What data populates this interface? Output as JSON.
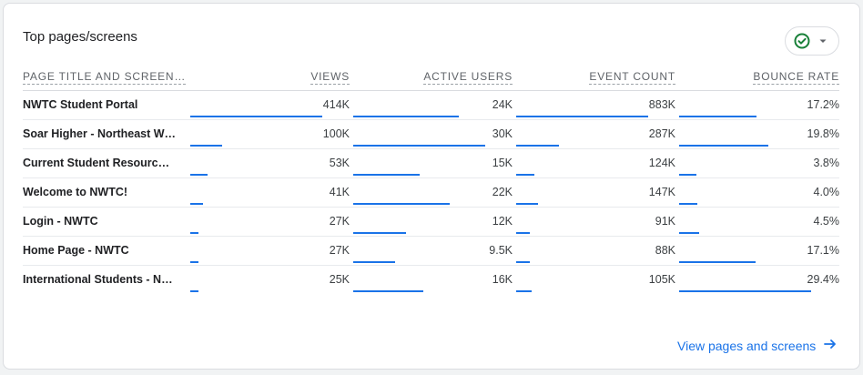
{
  "card": {
    "title": "Top pages/screens",
    "compare_icon": "check-circle-icon",
    "dropdown_icon": "caret-down-icon",
    "footer_link": "View pages and screens",
    "footer_icon": "arrow-right-icon"
  },
  "columns": [
    "PAGE TITLE AND SCREEN…",
    "VIEWS",
    "ACTIVE USERS",
    "EVENT COUNT",
    "BOUNCE RATE"
  ],
  "rows": [
    {
      "name": "NWTC Student Portal",
      "views": "414K",
      "users": "24K",
      "events": "883K",
      "bounce": "17.2%",
      "views_frac": 1.0,
      "users_frac": 0.8,
      "events_frac": 1.0,
      "bounce_frac": 0.585
    },
    {
      "name": "Soar Higher - Northeast Wisconsin Technical College",
      "views": "100K",
      "users": "30K",
      "events": "287K",
      "bounce": "19.8%",
      "views_frac": 0.24,
      "users_frac": 1.0,
      "events_frac": 0.325,
      "bounce_frac": 0.673
    },
    {
      "name": "Current Student Resources - NWTC",
      "views": "53K",
      "users": "15K",
      "events": "124K",
      "bounce": "3.8%",
      "views_frac": 0.128,
      "users_frac": 0.5,
      "events_frac": 0.14,
      "bounce_frac": 0.129
    },
    {
      "name": "Welcome to NWTC!",
      "views": "41K",
      "users": "22K",
      "events": "147K",
      "bounce": "4.0%",
      "views_frac": 0.099,
      "users_frac": 0.733,
      "events_frac": 0.166,
      "bounce_frac": 0.136
    },
    {
      "name": "Login - NWTC",
      "views": "27K",
      "users": "12K",
      "events": "91K",
      "bounce": "4.5%",
      "views_frac": 0.065,
      "users_frac": 0.4,
      "events_frac": 0.103,
      "bounce_frac": 0.153
    },
    {
      "name": "Home Page - NWTC",
      "views": "27K",
      "users": "9.5K",
      "events": "88K",
      "bounce": "17.1%",
      "views_frac": 0.065,
      "users_frac": 0.317,
      "events_frac": 0.1,
      "bounce_frac": 0.582
    },
    {
      "name": "International Students - Northeast Wisconsin Technical College",
      "views": "25K",
      "users": "16K",
      "events": "105K",
      "bounce": "29.4%",
      "views_frac": 0.06,
      "users_frac": 0.533,
      "events_frac": 0.119,
      "bounce_frac": 1.0
    }
  ],
  "colors": {
    "accent": "#1a73e8",
    "check": "#188038"
  }
}
